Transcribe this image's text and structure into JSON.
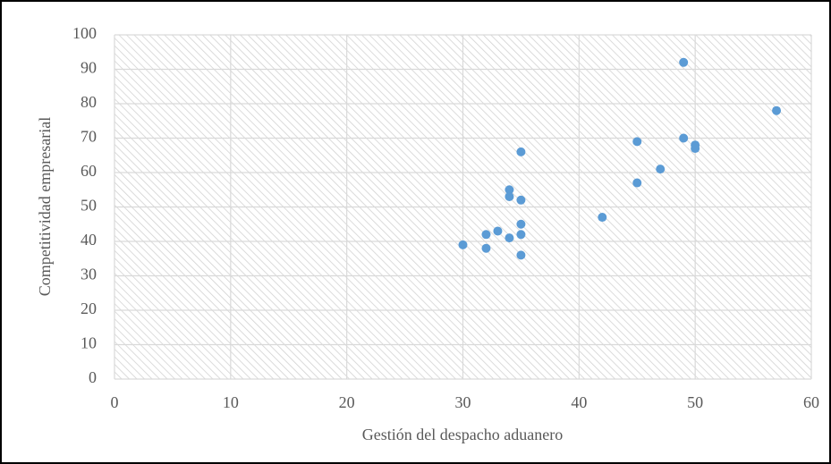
{
  "chart_data": {
    "type": "scatter",
    "xlabel": "Gestión del despacho aduanero",
    "ylabel": "Competitividad empresarial",
    "x": [
      30,
      32,
      32,
      33,
      34,
      34,
      34,
      35,
      35,
      35,
      35,
      35,
      42,
      45,
      45,
      47,
      49,
      49,
      50,
      50,
      57
    ],
    "values": [
      39,
      42,
      38,
      43,
      55,
      53,
      41,
      66,
      52,
      45,
      42,
      36,
      47,
      69,
      57,
      61,
      92,
      70,
      68,
      67,
      78
    ],
    "color": "#5b9bd5",
    "xlim": [
      0,
      60
    ],
    "xticks": [
      0,
      10,
      20,
      30,
      40,
      50,
      60
    ],
    "ylim": [
      0,
      100
    ],
    "yticks": [
      0,
      10,
      20,
      30,
      40,
      50,
      60,
      70,
      80,
      90,
      100
    ],
    "grid": true
  }
}
